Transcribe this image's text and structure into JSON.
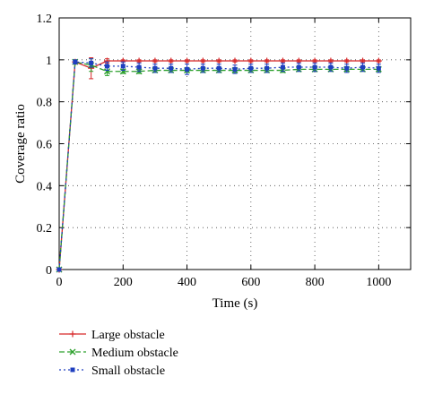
{
  "chart_data": {
    "type": "line",
    "xlabel": "Time (s)",
    "ylabel": "Coverage ratio",
    "xlim": [
      0,
      1100
    ],
    "ylim": [
      0,
      1.2
    ],
    "xticks": [
      0,
      200,
      400,
      600,
      800,
      1000
    ],
    "xtick_labels": [
      "0",
      "200",
      "400",
      "600",
      "800",
      "1000"
    ],
    "yticks": [
      0,
      0.2,
      0.4,
      0.6,
      0.8,
      1.0,
      1.2
    ],
    "ytick_labels": [
      "0",
      "0.2",
      "0.4",
      "0.6",
      "0.8",
      "1",
      "1.2"
    ],
    "grid": true,
    "legend_position": "bottom-left, below plot",
    "x": [
      0,
      50,
      100,
      150,
      200,
      250,
      300,
      350,
      400,
      450,
      500,
      550,
      600,
      650,
      700,
      750,
      800,
      850,
      900,
      950,
      1000
    ],
    "series": [
      {
        "name": "Large obstacle",
        "color": "#d62728",
        "marker": "plus",
        "line": "solid",
        "values": [
          0,
          0.99,
          0.96,
          0.995,
          0.995,
          0.995,
          0.995,
          0.995,
          0.995,
          0.995,
          0.995,
          0.995,
          0.995,
          0.995,
          0.995,
          0.995,
          0.995,
          0.995,
          0.995,
          0.995,
          0.995
        ],
        "errors": [
          0,
          0.01,
          0.05,
          0.01,
          0.005,
          0.005,
          0.005,
          0.005,
          0.005,
          0.005,
          0.005,
          0.005,
          0.005,
          0.005,
          0.005,
          0.005,
          0.005,
          0.005,
          0.005,
          0.005,
          0.005
        ]
      },
      {
        "name": "Medium obstacle",
        "color": "#2ca02c",
        "marker": "x",
        "line": "dashed",
        "values": [
          0,
          0.99,
          0.975,
          0.945,
          0.945,
          0.945,
          0.95,
          0.95,
          0.95,
          0.95,
          0.95,
          0.95,
          0.95,
          0.95,
          0.95,
          0.955,
          0.955,
          0.955,
          0.955,
          0.955,
          0.955
        ],
        "errors": [
          0,
          0.01,
          0.03,
          0.02,
          0.01,
          0.01,
          0.01,
          0.01,
          0.01,
          0.01,
          0.01,
          0.01,
          0.01,
          0.01,
          0.01,
          0.01,
          0.01,
          0.01,
          0.01,
          0.01,
          0.01
        ]
      },
      {
        "name": "Small obstacle",
        "color": "#1f3fbf",
        "marker": "square",
        "line": "dotted",
        "values": [
          0,
          0.99,
          0.985,
          0.97,
          0.97,
          0.965,
          0.96,
          0.96,
          0.955,
          0.96,
          0.96,
          0.955,
          0.96,
          0.96,
          0.965,
          0.965,
          0.965,
          0.965,
          0.96,
          0.965,
          0.96
        ],
        "errors": [
          0,
          0.01,
          0.02,
          0.02,
          0.02,
          0.02,
          0.02,
          0.02,
          0.025,
          0.02,
          0.02,
          0.02,
          0.02,
          0.02,
          0.02,
          0.02,
          0.02,
          0.02,
          0.02,
          0.02,
          0.02
        ]
      }
    ]
  }
}
